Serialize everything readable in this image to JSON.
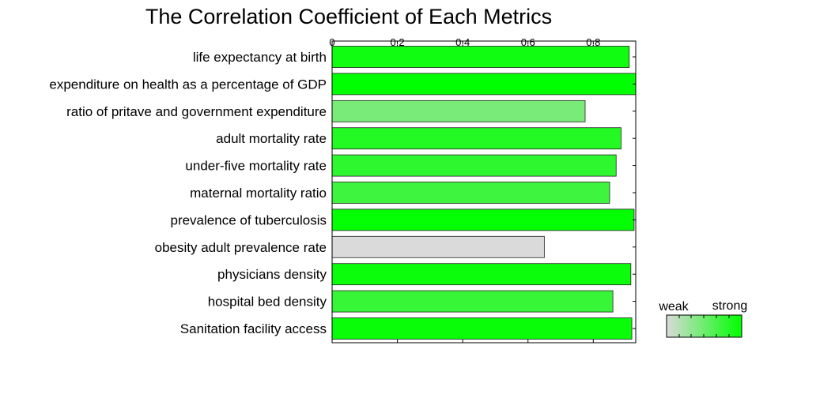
{
  "chart_data": {
    "type": "bar",
    "orientation": "horizontal",
    "title": "The Correlation Coefficient of Each Metrics",
    "xlabel": "",
    "ylabel": "",
    "xlim": [
      0,
      0.93
    ],
    "x_ticks": [
      "0",
      "0.2",
      "0.4",
      "0.6",
      "0.8"
    ],
    "x_tick_values": [
      0,
      0.2,
      0.4,
      0.6,
      0.8
    ],
    "grid": false,
    "categories": [
      "life expectancy at birth",
      "expenditure on health as a percentage of GDP",
      "ratio of pritave and government expenditure",
      "adult mortality rate",
      "under-five mortality rate",
      "maternal mortality ratio",
      "prevalence of tuberculosis",
      "obesity adult prevalence rate",
      "physicians density",
      "hospital bed density",
      "Sanitation facility access"
    ],
    "values": [
      0.91,
      0.93,
      0.775,
      0.885,
      0.87,
      0.85,
      0.925,
      0.65,
      0.915,
      0.86,
      0.918
    ],
    "color_scale": {
      "weak_label": "weak",
      "strong_label": "strong",
      "weak_color": "#dadada",
      "strong_color": "#00ff00",
      "range": [
        0.65,
        0.93
      ]
    },
    "legend_placement": "bottom-right"
  }
}
